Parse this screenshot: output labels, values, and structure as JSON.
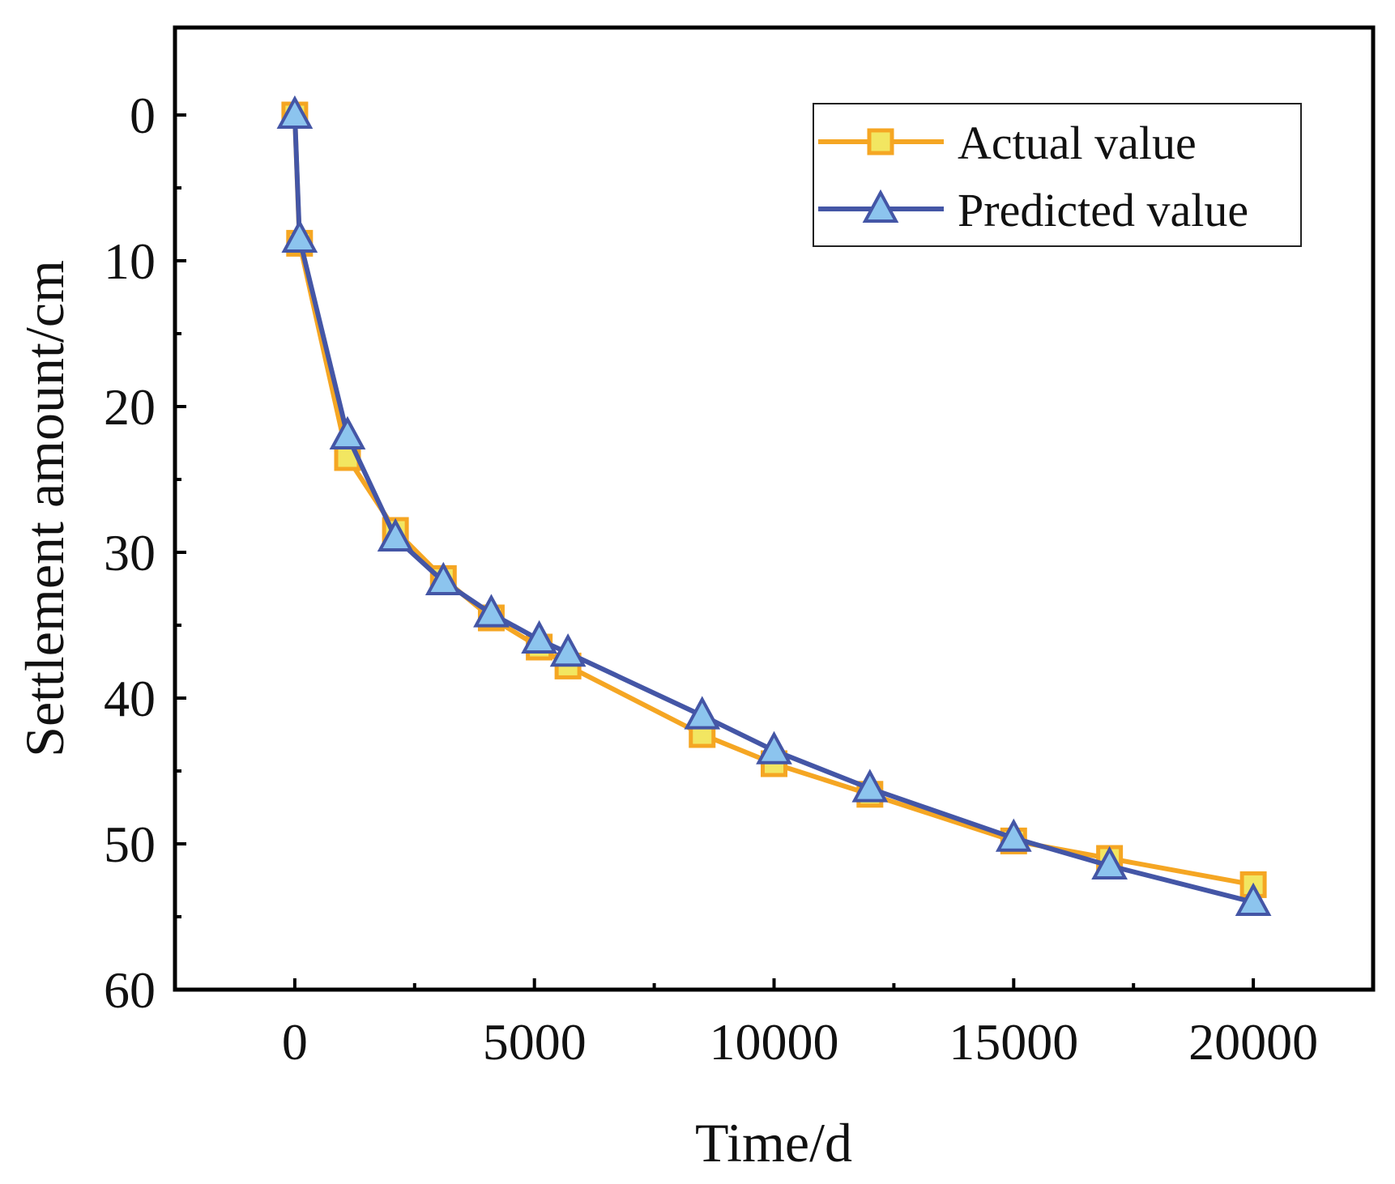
{
  "chart_data": {
    "type": "line",
    "title": "",
    "xlabel": "Time/d",
    "ylabel": "Settlement amount/cm",
    "xlim": [
      -2500,
      22500
    ],
    "ylim": [
      -6,
      60
    ],
    "y_inverted": true,
    "xticks": [
      0,
      5000,
      10000,
      15000,
      20000
    ],
    "xtick_labels": [
      "0",
      "5000",
      "10000",
      "15000",
      "20000"
    ],
    "yticks": [
      0,
      10,
      20,
      30,
      40,
      50,
      60
    ],
    "ytick_labels": [
      "0",
      "10",
      "20",
      "30",
      "40",
      "50",
      "60"
    ],
    "grid": false,
    "legend_position": "top-right",
    "series": [
      {
        "name": "Actual value",
        "color": "#F5A623",
        "marker": "square",
        "marker_fill": "#F2E661",
        "x": [
          0,
          100,
          1100,
          2100,
          3100,
          4100,
          5100,
          5700,
          8500,
          10000,
          12000,
          15000,
          17000,
          20000
        ],
        "y": [
          0,
          8.8,
          23.5,
          28.5,
          31.8,
          34.5,
          36.5,
          37.8,
          42.5,
          44.5,
          46.6,
          49.8,
          51,
          52.8
        ]
      },
      {
        "name": "Predicted value",
        "color": "#4456A6",
        "marker": "triangle",
        "marker_fill": "#8CC4EE",
        "x": [
          0,
          100,
          1100,
          2100,
          3100,
          4100,
          5100,
          5700,
          8500,
          10000,
          12000,
          15000,
          17000,
          20000
        ],
        "y": [
          0,
          8.5,
          22,
          29,
          32,
          34.2,
          36,
          36.9,
          41.2,
          43.6,
          46.2,
          49.6,
          51.5,
          54
        ]
      }
    ]
  }
}
